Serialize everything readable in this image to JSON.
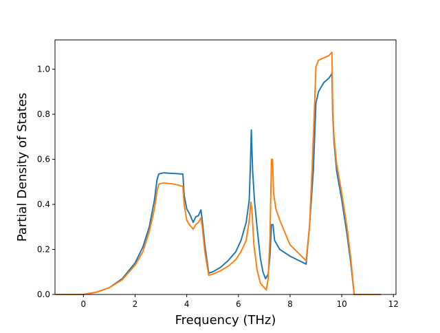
{
  "chart_data": {
    "type": "line",
    "xlabel": "Frequency (THz)",
    "ylabel": "Partial Density of States",
    "xlim": [
      -1.1,
      12.1
    ],
    "ylim": [
      0.0,
      1.13
    ],
    "xticks": [
      "0",
      "2",
      "4",
      "6",
      "8",
      "10",
      "12"
    ],
    "yticks": [
      "0.0",
      "0.2",
      "0.4",
      "0.6",
      "0.8",
      "1.0"
    ],
    "grid": false,
    "legend": "none",
    "series": [
      {
        "color": "#1f77b4",
        "points": [
          [
            -1.05,
            0.0
          ],
          [
            0.0,
            0.0
          ],
          [
            0.5,
            0.01
          ],
          [
            1.0,
            0.03
          ],
          [
            1.5,
            0.07
          ],
          [
            2.0,
            0.14
          ],
          [
            2.3,
            0.21
          ],
          [
            2.55,
            0.3
          ],
          [
            2.75,
            0.42
          ],
          [
            2.85,
            0.51
          ],
          [
            2.92,
            0.535
          ],
          [
            3.1,
            0.54
          ],
          [
            3.5,
            0.537
          ],
          [
            3.85,
            0.535
          ],
          [
            3.9,
            0.44
          ],
          [
            4.0,
            0.38
          ],
          [
            4.1,
            0.36
          ],
          [
            4.25,
            0.32
          ],
          [
            4.35,
            0.345
          ],
          [
            4.45,
            0.35
          ],
          [
            4.55,
            0.375
          ],
          [
            4.6,
            0.33
          ],
          [
            4.7,
            0.22
          ],
          [
            4.85,
            0.095
          ],
          [
            5.0,
            0.1
          ],
          [
            5.3,
            0.12
          ],
          [
            5.6,
            0.15
          ],
          [
            5.9,
            0.19
          ],
          [
            6.1,
            0.24
          ],
          [
            6.3,
            0.32
          ],
          [
            6.42,
            0.42
          ],
          [
            6.47,
            0.6
          ],
          [
            6.5,
            0.73
          ],
          [
            6.55,
            0.55
          ],
          [
            6.62,
            0.42
          ],
          [
            6.72,
            0.3
          ],
          [
            6.85,
            0.16
          ],
          [
            6.95,
            0.1
          ],
          [
            7.05,
            0.07
          ],
          [
            7.15,
            0.09
          ],
          [
            7.22,
            0.17
          ],
          [
            7.28,
            0.31
          ],
          [
            7.34,
            0.31
          ],
          [
            7.4,
            0.24
          ],
          [
            7.6,
            0.2
          ],
          [
            8.0,
            0.17
          ],
          [
            8.62,
            0.135
          ],
          [
            8.75,
            0.3
          ],
          [
            8.9,
            0.55
          ],
          [
            9.0,
            0.85
          ],
          [
            9.1,
            0.9
          ],
          [
            9.3,
            0.94
          ],
          [
            9.5,
            0.96
          ],
          [
            9.62,
            0.98
          ],
          [
            9.65,
            0.8
          ],
          [
            9.7,
            0.68
          ],
          [
            9.8,
            0.55
          ],
          [
            10.0,
            0.42
          ],
          [
            10.2,
            0.27
          ],
          [
            10.35,
            0.14
          ],
          [
            10.48,
            0.0
          ],
          [
            11.5,
            0.0
          ]
        ]
      },
      {
        "color": "#ff7f0e",
        "points": [
          [
            -1.05,
            0.0
          ],
          [
            0.0,
            0.0
          ],
          [
            0.5,
            0.01
          ],
          [
            1.0,
            0.03
          ],
          [
            1.5,
            0.065
          ],
          [
            2.0,
            0.13
          ],
          [
            2.3,
            0.19
          ],
          [
            2.55,
            0.28
          ],
          [
            2.75,
            0.38
          ],
          [
            2.85,
            0.46
          ],
          [
            2.92,
            0.49
          ],
          [
            3.1,
            0.495
          ],
          [
            3.5,
            0.49
          ],
          [
            3.85,
            0.48
          ],
          [
            3.9,
            0.4
          ],
          [
            4.0,
            0.33
          ],
          [
            4.1,
            0.31
          ],
          [
            4.25,
            0.29
          ],
          [
            4.35,
            0.31
          ],
          [
            4.45,
            0.32
          ],
          [
            4.55,
            0.34
          ],
          [
            4.6,
            0.3
          ],
          [
            4.7,
            0.19
          ],
          [
            4.85,
            0.085
          ],
          [
            5.0,
            0.09
          ],
          [
            5.3,
            0.105
          ],
          [
            5.6,
            0.125
          ],
          [
            5.9,
            0.155
          ],
          [
            6.1,
            0.19
          ],
          [
            6.3,
            0.24
          ],
          [
            6.42,
            0.33
          ],
          [
            6.48,
            0.41
          ],
          [
            6.52,
            0.38
          ],
          [
            6.6,
            0.22
          ],
          [
            6.72,
            0.11
          ],
          [
            6.85,
            0.05
          ],
          [
            7.0,
            0.03
          ],
          [
            7.08,
            0.02
          ],
          [
            7.15,
            0.07
          ],
          [
            7.22,
            0.25
          ],
          [
            7.28,
            0.6
          ],
          [
            7.32,
            0.6
          ],
          [
            7.36,
            0.45
          ],
          [
            7.45,
            0.38
          ],
          [
            7.6,
            0.33
          ],
          [
            8.0,
            0.22
          ],
          [
            8.62,
            0.15
          ],
          [
            8.75,
            0.3
          ],
          [
            8.85,
            0.55
          ],
          [
            8.95,
            0.85
          ],
          [
            9.0,
            1.01
          ],
          [
            9.1,
            1.04
          ],
          [
            9.3,
            1.05
          ],
          [
            9.5,
            1.06
          ],
          [
            9.62,
            1.075
          ],
          [
            9.65,
            0.82
          ],
          [
            9.7,
            0.7
          ],
          [
            9.8,
            0.58
          ],
          [
            10.0,
            0.45
          ],
          [
            10.2,
            0.3
          ],
          [
            10.35,
            0.16
          ],
          [
            10.48,
            0.0
          ],
          [
            11.5,
            0.0
          ]
        ]
      }
    ]
  }
}
